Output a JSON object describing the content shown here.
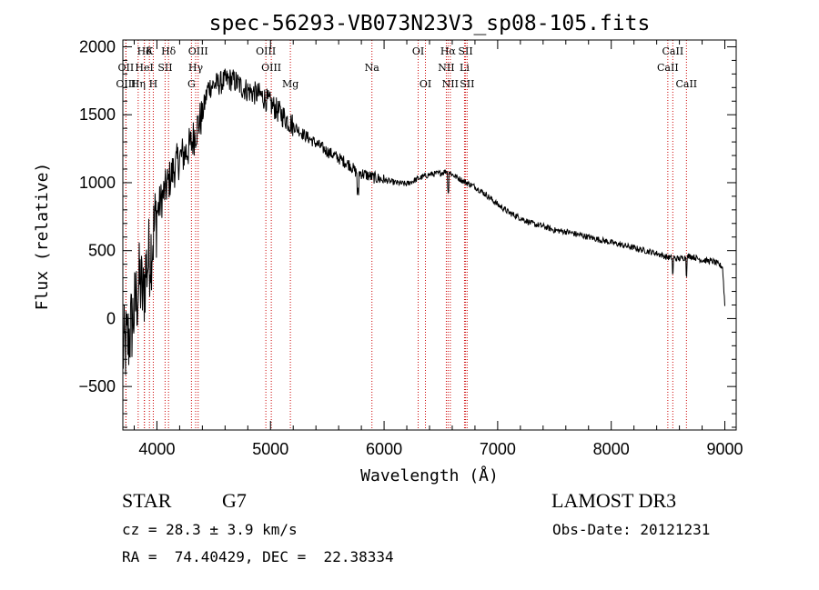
{
  "chart_data": {
    "type": "line",
    "title": "spec-56293-VB073N23V3_sp08-105.fits",
    "xlabel": "Wavelength (Å)",
    "ylabel": "Flux (relative)",
    "xlim": [
      3700,
      9100
    ],
    "ylim": [
      -820,
      2050
    ],
    "xticks": [
      4000,
      5000,
      6000,
      7000,
      8000,
      9000
    ],
    "yticks": [
      -500,
      0,
      500,
      1000,
      1500,
      2000
    ],
    "grid": false,
    "series": [
      {
        "name": "spectrum",
        "x": [
          3700,
          3750,
          3800,
          3850,
          3880,
          3900,
          3950,
          4000,
          4050,
          4100,
          4150,
          4200,
          4250,
          4300,
          4350,
          4400,
          4450,
          4500,
          4550,
          4600,
          4650,
          4700,
          4750,
          4800,
          4850,
          4900,
          4950,
          5000,
          5100,
          5200,
          5300,
          5400,
          5500,
          5600,
          5700,
          5750,
          5800,
          5900,
          6000,
          6100,
          6200,
          6300,
          6400,
          6500,
          6560,
          6600,
          6700,
          6800,
          6900,
          7000,
          7100,
          7200,
          7300,
          7400,
          7500,
          7600,
          7700,
          7800,
          7900,
          8000,
          8100,
          8200,
          8300,
          8400,
          8500,
          8600,
          8700,
          8800,
          8900,
          8980,
          9000
        ],
        "y": [
          -250,
          -150,
          50,
          280,
          150,
          350,
          520,
          780,
          900,
          1000,
          1100,
          1180,
          1220,
          1280,
          1400,
          1500,
          1700,
          1720,
          1730,
          1750,
          1760,
          1740,
          1700,
          1680,
          1660,
          1650,
          1620,
          1580,
          1500,
          1420,
          1350,
          1290,
          1230,
          1180,
          1130,
          1080,
          1070,
          1040,
          1020,
          1000,
          990,
          1030,
          1060,
          1070,
          1090,
          1060,
          1010,
          970,
          910,
          840,
          780,
          740,
          700,
          680,
          650,
          640,
          620,
          600,
          580,
          560,
          540,
          520,
          500,
          480,
          450,
          440,
          460,
          430,
          420,
          380,
          100
        ]
      }
    ],
    "line_markers": [
      {
        "label": "Hδ",
        "wavelength": 3890,
        "row": 1
      },
      {
        "label": "K",
        "wavelength": 3934,
        "row": 1
      },
      {
        "label": "Hδ",
        "wavelength": 4102,
        "row": 1
      },
      {
        "label": "OIII",
        "wavelength": 4363,
        "row": 1
      },
      {
        "label": "OIII",
        "wavelength": 4959,
        "row": 1
      },
      {
        "label": "OI",
        "wavelength": 6300,
        "row": 1
      },
      {
        "label": "Hα",
        "wavelength": 6563,
        "row": 1
      },
      {
        "label": "SII",
        "wavelength": 6717,
        "row": 1
      },
      {
        "label": "CaII",
        "wavelength": 8542,
        "row": 1
      },
      {
        "label": "OII",
        "wavelength": 3727,
        "row": 2
      },
      {
        "label": "HeI",
        "wavelength": 3889,
        "row": 2
      },
      {
        "label": "SII",
        "wavelength": 4072,
        "row": 2
      },
      {
        "label": "Hγ",
        "wavelength": 4341,
        "row": 2
      },
      {
        "label": "OIII",
        "wavelength": 5007,
        "row": 2
      },
      {
        "label": "Na",
        "wavelength": 5893,
        "row": 2
      },
      {
        "label": "NII",
        "wavelength": 6548,
        "row": 2
      },
      {
        "label": "Li",
        "wavelength": 6708,
        "row": 2
      },
      {
        "label": "CaII",
        "wavelength": 8498,
        "row": 2
      },
      {
        "label": "OIII",
        "wavelength": 3727,
        "row": 3
      },
      {
        "label": "Hη",
        "wavelength": 3835,
        "row": 3
      },
      {
        "label": "H",
        "wavelength": 3968,
        "row": 3
      },
      {
        "label": "G",
        "wavelength": 4304,
        "row": 3
      },
      {
        "label": "Mg",
        "wavelength": 5175,
        "row": 3
      },
      {
        "label": "OI",
        "wavelength": 6364,
        "row": 3
      },
      {
        "label": "NII",
        "wavelength": 6583,
        "row": 3
      },
      {
        "label": "SII",
        "wavelength": 6731,
        "row": 3
      },
      {
        "label": "CaII",
        "wavelength": 8662,
        "row": 3
      }
    ]
  },
  "info": {
    "object_class": "STAR",
    "subclass": "G7",
    "survey": "LAMOST DR3",
    "redshift": "cz = 28.3 ± 3.9 km/s",
    "obs_date": "Obs-Date: 20121231",
    "coords": "RA =  74.40429, DEC =  22.38334"
  },
  "colors": {
    "line_marker": "#cc0000",
    "spectrum": "#000000"
  }
}
